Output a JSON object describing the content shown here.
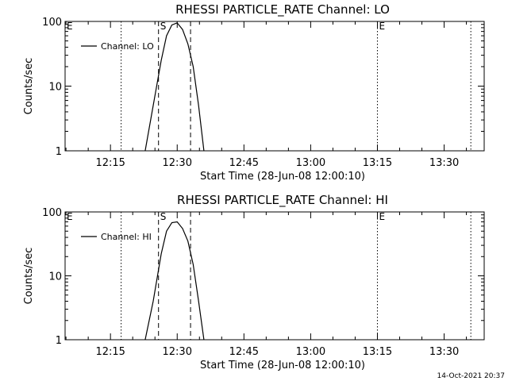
{
  "footer": {
    "timestamp": "14-Oct-2021 20:37"
  },
  "chart_data": [
    {
      "type": "line",
      "title": "RHESSI PARTICLE_RATE Channel: LO",
      "xlabel": "Start Time (28-Jun-08 12:00:10)",
      "ylabel": "Counts/sec",
      "yscale": "log",
      "xlim": [
        12.08,
        13.65
      ],
      "ylim": [
        1,
        100
      ],
      "x_ticks": [
        {
          "label": "12:15",
          "value": 12.25
        },
        {
          "label": "12:30",
          "value": 12.5
        },
        {
          "label": "12:45",
          "value": 12.75
        },
        {
          "label": "13:00",
          "value": 13.0
        },
        {
          "label": "13:15",
          "value": 13.25
        },
        {
          "label": "13:30",
          "value": 13.5
        }
      ],
      "y_ticks": [
        {
          "label": "1",
          "value": 1
        },
        {
          "label": "10",
          "value": 10
        },
        {
          "label": "100",
          "value": 100
        }
      ],
      "legend": {
        "entry": "Channel: LO",
        "placement": "top-left"
      },
      "series": [
        {
          "name": "Channel: LO",
          "x": [
            12.38,
            12.41,
            12.44,
            12.46,
            12.48,
            12.5,
            12.52,
            12.54,
            12.56,
            12.58,
            12.6
          ],
          "y": [
            1,
            5,
            25,
            60,
            88,
            95,
            75,
            45,
            20,
            5,
            1
          ]
        }
      ],
      "dotted_lines": [
        12.29,
        13.25,
        13.6
      ],
      "dashed_lines": [
        12.43,
        12.55
      ],
      "markers": [
        {
          "label": "E",
          "x": 12.08
        },
        {
          "label": "S",
          "x": 12.43
        },
        {
          "label": "E",
          "x": 13.25
        }
      ]
    },
    {
      "type": "line",
      "title": "RHESSI PARTICLE_RATE Channel: HI",
      "xlabel": "Start Time (28-Jun-08 12:00:10)",
      "ylabel": "Counts/sec",
      "yscale": "log",
      "xlim": [
        12.08,
        13.65
      ],
      "ylim": [
        1,
        100
      ],
      "x_ticks": [
        {
          "label": "12:15",
          "value": 12.25
        },
        {
          "label": "12:30",
          "value": 12.5
        },
        {
          "label": "12:45",
          "value": 12.75
        },
        {
          "label": "13:00",
          "value": 13.0
        },
        {
          "label": "13:15",
          "value": 13.25
        },
        {
          "label": "13:30",
          "value": 13.5
        }
      ],
      "y_ticks": [
        {
          "label": "1",
          "value": 1
        },
        {
          "label": "10",
          "value": 10
        },
        {
          "label": "100",
          "value": 100
        }
      ],
      "legend": {
        "entry": "Channel: HI",
        "placement": "top-left"
      },
      "series": [
        {
          "name": "Channel: HI",
          "x": [
            12.38,
            12.41,
            12.44,
            12.46,
            12.48,
            12.5,
            12.52,
            12.54,
            12.56,
            12.58,
            12.6
          ],
          "y": [
            1,
            4,
            22,
            50,
            68,
            70,
            55,
            35,
            15,
            4,
            1
          ]
        }
      ],
      "dotted_lines": [
        12.29,
        13.25,
        13.6
      ],
      "dashed_lines": [
        12.43,
        12.55
      ],
      "markers": [
        {
          "label": "E",
          "x": 12.08
        },
        {
          "label": "S",
          "x": 12.43
        },
        {
          "label": "E",
          "x": 13.25
        }
      ]
    }
  ]
}
